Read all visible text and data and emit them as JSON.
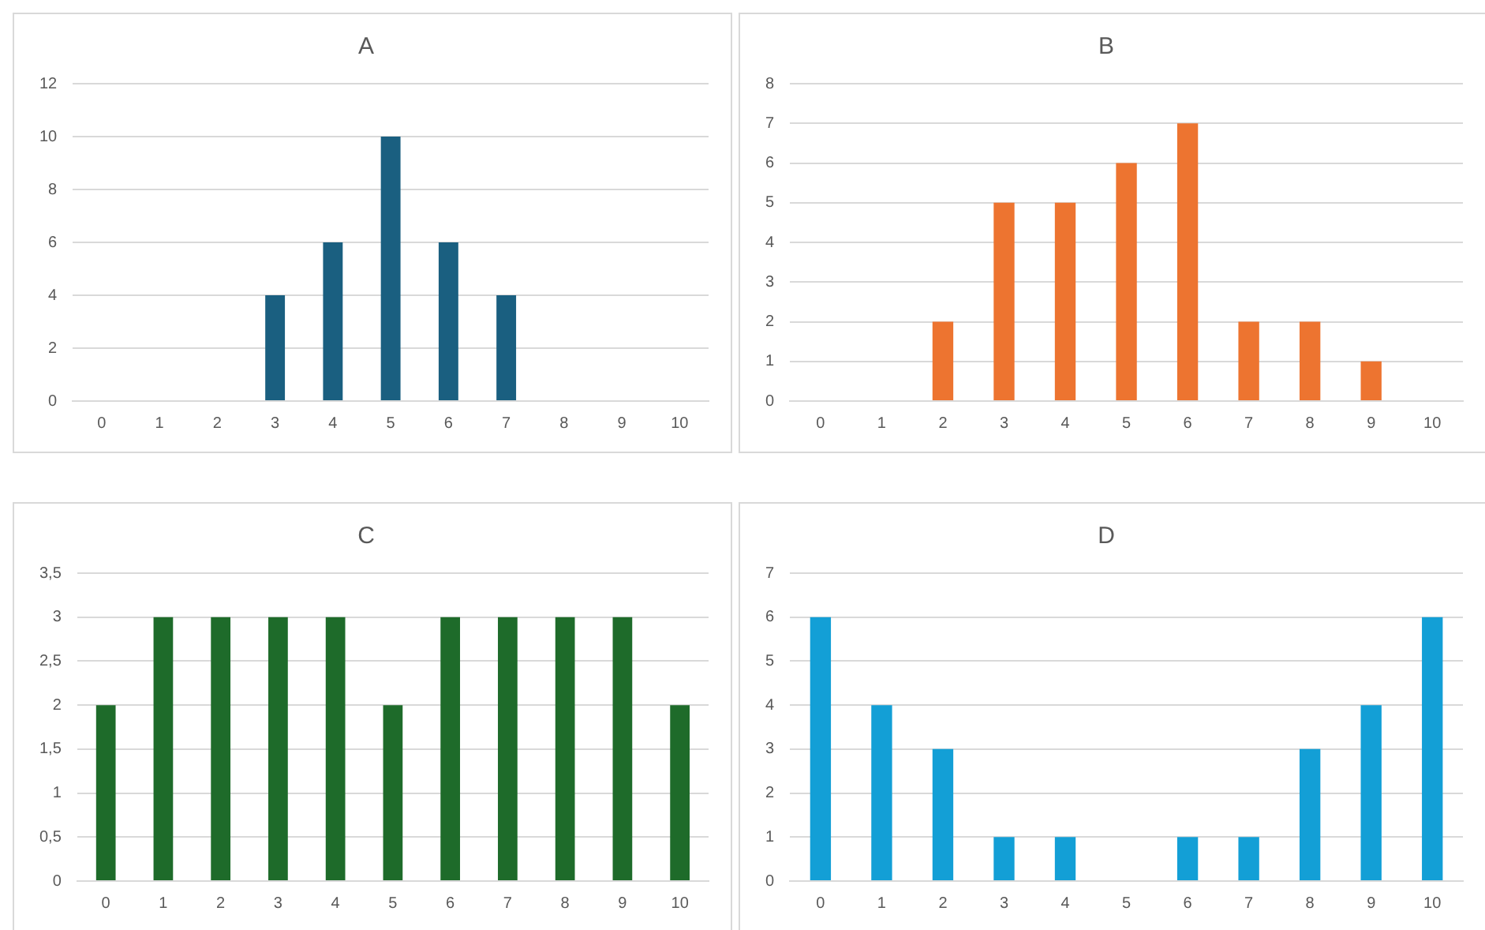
{
  "chart_data": [
    {
      "type": "bar",
      "title": "A",
      "categories": [
        "0",
        "1",
        "2",
        "3",
        "4",
        "5",
        "6",
        "7",
        "8",
        "9",
        "10"
      ],
      "values": [
        0,
        0,
        0,
        4,
        6,
        10,
        6,
        4,
        0,
        0,
        0
      ],
      "color": "#1a5f80",
      "ylim": [
        0,
        12
      ],
      "yticks": [
        0,
        2,
        4,
        6,
        8,
        10,
        12
      ],
      "grid": "y",
      "legend": false
    },
    {
      "type": "bar",
      "title": "B",
      "categories": [
        "0",
        "1",
        "2",
        "3",
        "4",
        "5",
        "6",
        "7",
        "8",
        "9",
        "10"
      ],
      "values": [
        0,
        0,
        2,
        5,
        5,
        6,
        7,
        2,
        2,
        1,
        0
      ],
      "color": "#ed7430",
      "ylim": [
        0,
        8
      ],
      "yticks": [
        0,
        1,
        2,
        3,
        4,
        5,
        6,
        7,
        8
      ],
      "grid": "y",
      "legend": false
    },
    {
      "type": "bar",
      "title": "C",
      "categories": [
        "0",
        "1",
        "2",
        "3",
        "4",
        "5",
        "6",
        "7",
        "8",
        "9",
        "10"
      ],
      "values": [
        2,
        3,
        3,
        3,
        3,
        2,
        3,
        3,
        3,
        3,
        2
      ],
      "color": "#1e6b2a",
      "ylim": [
        0,
        3.5
      ],
      "yticks": [
        0,
        {
          "value": 0.5,
          "label": "0,5"
        },
        1,
        {
          "value": 1.5,
          "label": "1,5"
        },
        2,
        {
          "value": 2.5,
          "label": "2,5"
        },
        3,
        {
          "value": 3.5,
          "label": "3,5"
        }
      ],
      "grid": "y",
      "legend": false
    },
    {
      "type": "bar",
      "title": "D",
      "categories": [
        "0",
        "1",
        "2",
        "3",
        "4",
        "5",
        "6",
        "7",
        "8",
        "9",
        "10"
      ],
      "values": [
        6,
        4,
        3,
        1,
        1,
        0,
        1,
        1,
        3,
        4,
        6
      ],
      "color": "#139fd6",
      "ylim": [
        0,
        7
      ],
      "yticks": [
        0,
        1,
        2,
        3,
        4,
        5,
        6,
        7
      ],
      "grid": "y",
      "legend": false
    }
  ]
}
